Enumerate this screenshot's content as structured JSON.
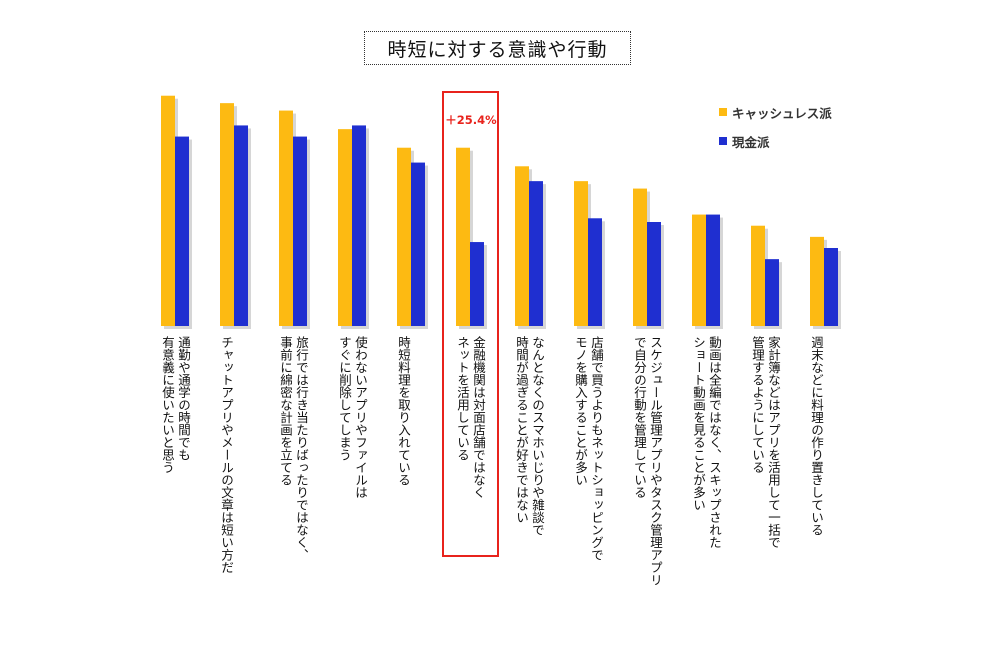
{
  "chart_data": {
    "type": "bar",
    "title": "時短に対する意識や行動",
    "categories": [
      "通勤や通学の時間でも\n有意義に使いたいと思う",
      "チャットアプリやメールの文章は短い方だ",
      "旅行では行き当たりばったりではなく、\n事前に綿密な計画を立てる",
      "使わないアプリやファイルは\nすぐに削除してしまう",
      "時短料理を取り入れている",
      "金融機関は対面店舗ではなく\nネットを活用している",
      "なんとなくのスマホいじりや雑談で\n時間が過ぎることが好きではない",
      "店舗で買うよりもネットショッピングで\nモノを購入することが多い",
      "スケジュール管理アプリやタスク管理アプリ\nで自分の行動を管理している",
      "動画は全編ではなく、スキップされた\nショート動画を見ることが多い",
      "家計簿などはアプリを活用して一括で\n管理するようにしている",
      "週末などに料理の作り置きしている"
    ],
    "series": [
      {
        "name": "キャッシュレス派",
        "color": "#FDBA12",
        "values": [
          62,
          60,
          58,
          53,
          48,
          48,
          43,
          39,
          37,
          30,
          27,
          24
        ]
      },
      {
        "name": "現金派",
        "color": "#1F2FD0",
        "values": [
          51,
          54,
          51,
          54,
          44,
          22.6,
          39,
          29,
          28,
          30,
          18,
          21
        ]
      }
    ],
    "ylim": [
      0,
      70
    ],
    "grid": false,
    "legend_position": "top-right",
    "annotation": {
      "text": "＋25.4%",
      "category_index": 5,
      "color": "#E8231C"
    }
  }
}
